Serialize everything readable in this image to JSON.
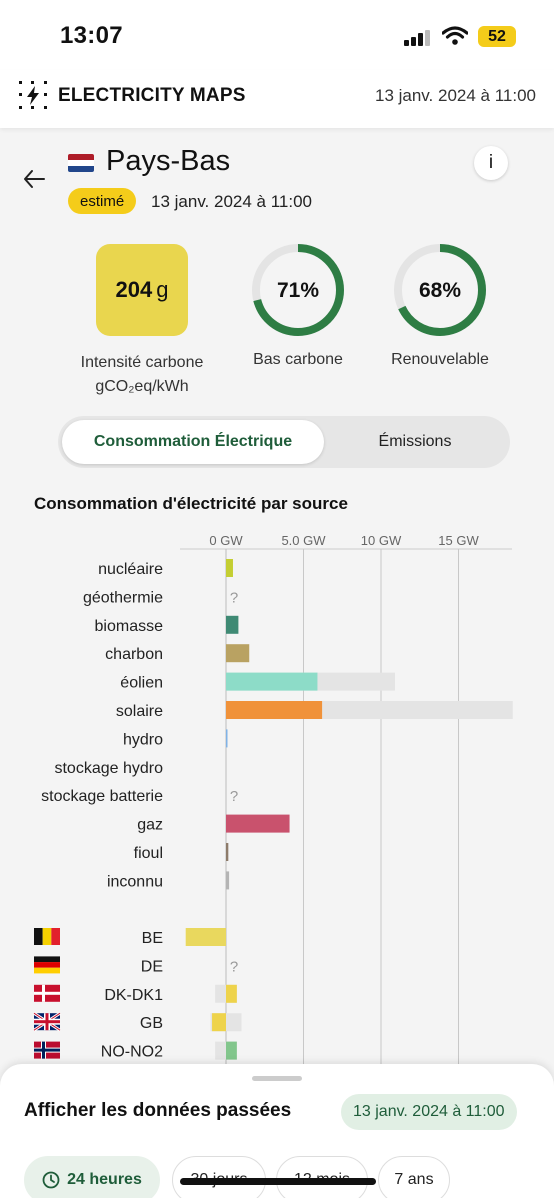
{
  "status_bar": {
    "time": "13:07",
    "battery": "52"
  },
  "header": {
    "app_title": "ELECTRICITY MAPS",
    "datetime": "13 janv. 2024 à 11:00"
  },
  "zone": {
    "name": "Pays-Bas",
    "flag_colors": [
      "#ae1c28",
      "#ffffff",
      "#21468b"
    ],
    "badge": "estimé",
    "datetime": "13 janv. 2024 à 11:00",
    "info_label": "i"
  },
  "metrics": {
    "carbon_value": "204",
    "carbon_unit": "g",
    "carbon_label_line1": "Intensité carbone",
    "carbon_label_line2": "gCO₂eq/kWh",
    "low_carbon_value": "71%",
    "low_carbon_fraction": 0.71,
    "low_carbon_label": "Bas carbone",
    "renewable_value": "68%",
    "renewable_fraction": 0.68,
    "renewable_label": "Renouvelable"
  },
  "toggle": {
    "active": "Consommation Électrique",
    "inactive": "Émissions"
  },
  "chart_title": "Consommation d'électricité par source",
  "chart_data": {
    "type": "bar",
    "axis_ticks": [
      "0 GW",
      "5.0 GW",
      "10 GW",
      "15 GW"
    ],
    "tick_values": [
      0,
      5,
      10,
      15
    ],
    "xlim": [
      -2.5,
      19.3
    ],
    "grid": true,
    "sources": [
      {
        "name": "nucléaire",
        "value": 0.45,
        "capacity": null,
        "color": "#c4ce32"
      },
      {
        "name": "géothermie",
        "value": null,
        "capacity": null,
        "color": "#999999",
        "unknown": "?"
      },
      {
        "name": "biomasse",
        "value": 0.8,
        "capacity": null,
        "color": "#3f8a74"
      },
      {
        "name": "charbon",
        "value": 1.5,
        "capacity": null,
        "color": "#b9a262"
      },
      {
        "name": "éolien",
        "value": 5.9,
        "capacity": 10.9,
        "color": "#8ddcc8"
      },
      {
        "name": "solaire",
        "value": 6.2,
        "capacity": 18.5,
        "color": "#f0923a"
      },
      {
        "name": "hydro",
        "value": 0.05,
        "capacity": null,
        "color": "#7fb2e6"
      },
      {
        "name": "stockage hydro",
        "value": 0,
        "capacity": null,
        "color": "#4a83c4"
      },
      {
        "name": "stockage batterie",
        "value": null,
        "capacity": null,
        "color": "#999999",
        "unknown": "?"
      },
      {
        "name": "gaz",
        "value": 4.1,
        "capacity": null,
        "color": "#c9526d"
      },
      {
        "name": "fioul",
        "value": 0.15,
        "capacity": null,
        "color": "#8d7b6a"
      },
      {
        "name": "inconnu",
        "value": 0.2,
        "capacity": null,
        "color": "#b4b4b4"
      }
    ],
    "exchanges": [
      {
        "zone": "BE",
        "flag": "be",
        "value": -2.6,
        "capacity": null,
        "color": "#e9d85e"
      },
      {
        "zone": "DE",
        "flag": "de",
        "value": null,
        "capacity": null,
        "color": "#999999",
        "unknown": "?"
      },
      {
        "zone": "DK-DK1",
        "flag": "dk",
        "value": 0.7,
        "capacity": [
          -0.7,
          0.7
        ],
        "color": "#eed34b"
      },
      {
        "zone": "GB",
        "flag": "gb",
        "value": -0.9,
        "capacity": [
          -1.0,
          1.0
        ],
        "color": "#eed34b"
      },
      {
        "zone": "NO-NO2",
        "flag": "no",
        "value": 0.7,
        "capacity": [
          -0.7,
          0.7
        ],
        "color": "#82c68c"
      }
    ]
  },
  "sheet": {
    "title": "Afficher les données passées",
    "date": "13 janv. 2024 à 11:00",
    "periods": [
      "24 heures",
      "30 jours",
      "12 mois",
      "7 ans"
    ]
  }
}
